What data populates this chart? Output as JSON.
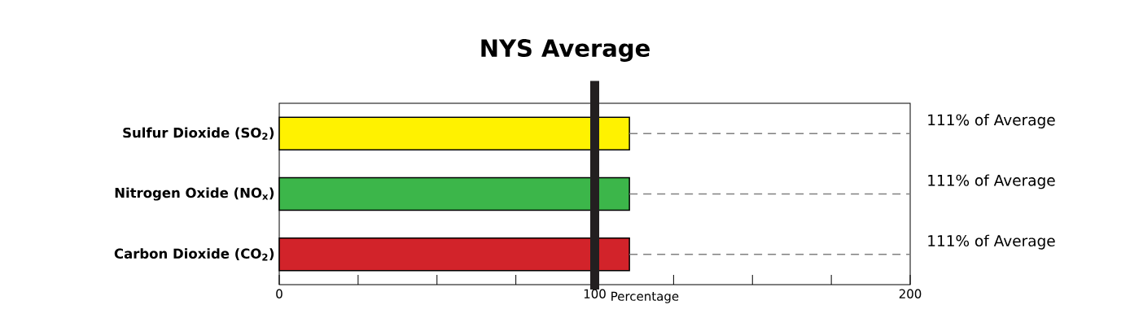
{
  "chart_data": {
    "type": "bar",
    "orientation": "horizontal",
    "title": "NYS Average",
    "xlabel": "Percentage",
    "categories": [
      "Sulfur Dioxide (SO$_{2}$)",
      "Nitrogen Oxide (NO$_{x}$)",
      "Carbon Dioxide (CO$_{2}$)"
    ],
    "values": [
      111,
      111,
      111
    ],
    "colors": [
      "#fff200",
      "#3cb64a",
      "#d2232a"
    ],
    "value_labels": [
      "111% of Average",
      "111% of Average",
      "111% of Average"
    ],
    "xlim": [
      0,
      200
    ],
    "xticks": [
      0,
      {
        "value": 25,
        "label": null
      },
      {
        "value": 50,
        "label": null
      },
      {
        "value": 75,
        "label": null
      },
      100,
      {
        "value": 125,
        "label": null
      },
      {
        "value": 150,
        "label": null
      },
      {
        "value": 175,
        "label": null
      },
      200
    ],
    "ref_lines": [
      {
        "axis": "x",
        "value": 100,
        "color": "#231f20"
      }
    ],
    "grid": false
  }
}
